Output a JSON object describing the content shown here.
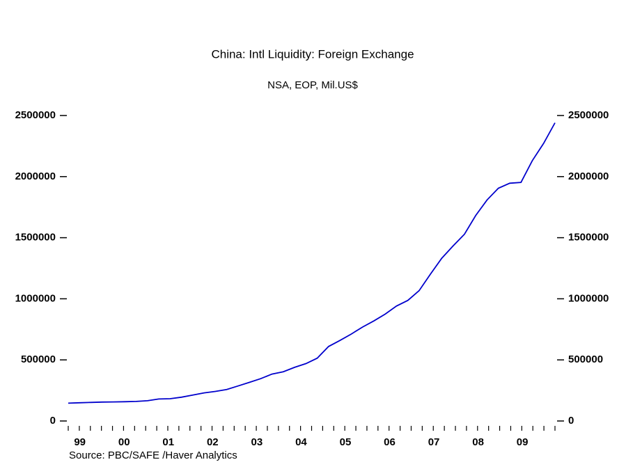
{
  "chart_data": {
    "type": "line",
    "title": "China: Intl Liquidity: Foreign Exchange",
    "subtitle": "NSA, EOP, Mil.US$",
    "source": "Source:  PBC/SAFE /Haver Analytics",
    "categories": [
      "99",
      null,
      null,
      null,
      "00",
      null,
      null,
      null,
      "01",
      null,
      null,
      null,
      "02",
      null,
      null,
      null,
      "03",
      null,
      null,
      null,
      "04",
      null,
      null,
      null,
      "05",
      null,
      null,
      null,
      "06",
      null,
      null,
      null,
      "07",
      null,
      null,
      null,
      "08",
      null,
      null,
      null,
      "09",
      null,
      null,
      null
    ],
    "series": [
      {
        "name": "Foreign Exchange",
        "color": "#0000cc",
        "values": [
          146000,
          149000,
          152000,
          154675,
          156000,
          158000,
          160000,
          165574,
          180000,
          182000,
          195000,
          212165,
          230000,
          242000,
          258000,
          286407,
          316000,
          346000,
          384000,
          403251,
          439000,
          470000,
          514000,
          609932,
          659000,
          711000,
          769000,
          818872,
          875000,
          941000,
          987000,
          1066344,
          1202000,
          1332000,
          1433000,
          1528249,
          1682000,
          1809000,
          1905000,
          1946030,
          1953000,
          2131000,
          2272000,
          2440000
        ]
      }
    ],
    "ylim": [
      0,
      2500000
    ],
    "yticks": [
      0,
      500000,
      1000000,
      1500000,
      2000000,
      2500000
    ],
    "y2lim": [
      0,
      2500000
    ],
    "y2ticks": [
      0,
      500000,
      1000000,
      1500000,
      2000000,
      2500000
    ]
  }
}
